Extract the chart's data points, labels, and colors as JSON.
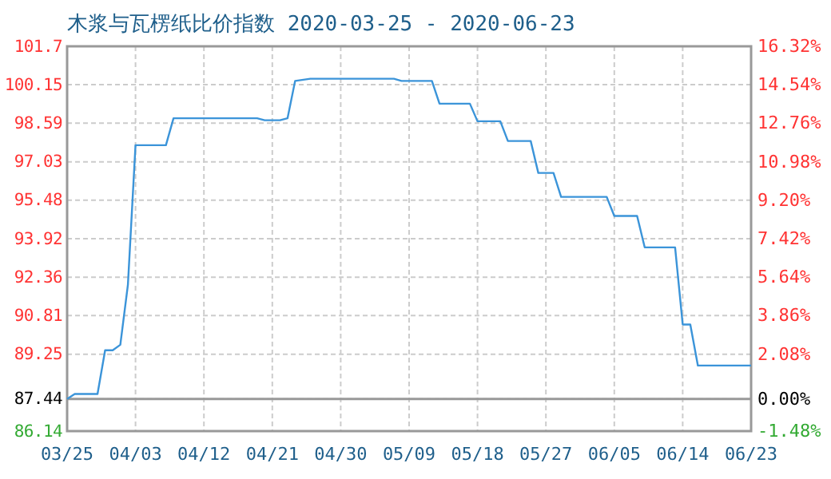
{
  "chart_data": {
    "type": "line",
    "title": "木浆与瓦楞纸比价指数 2020-03-25 - 2020-06-23",
    "x": [
      "2020-03-25",
      "2020-03-26",
      "2020-03-29",
      "2020-03-30",
      "2020-03-31",
      "2020-04-01",
      "2020-04-02",
      "2020-04-03",
      "2020-04-07",
      "2020-04-08",
      "2020-04-19",
      "2020-04-20",
      "2020-04-22",
      "2020-04-23",
      "2020-04-24",
      "2020-04-26",
      "2020-05-07",
      "2020-05-08",
      "2020-05-12",
      "2020-05-13",
      "2020-05-17",
      "2020-05-18",
      "2020-05-21",
      "2020-05-22",
      "2020-05-25",
      "2020-05-26",
      "2020-05-28",
      "2020-05-29",
      "2020-06-04",
      "2020-06-05",
      "2020-06-08",
      "2020-06-09",
      "2020-06-13",
      "2020-06-14",
      "2020-06-15",
      "2020-06-16",
      "2020-06-23"
    ],
    "series": [
      {
        "color": "#3b94d9",
        "values": [
          87.44,
          87.64,
          87.64,
          89.41,
          89.41,
          89.63,
          92.06,
          97.7,
          97.7,
          98.79,
          98.79,
          98.71,
          98.71,
          98.79,
          100.3,
          100.39,
          100.39,
          100.3,
          100.3,
          99.38,
          99.38,
          98.67,
          98.67,
          97.87,
          97.87,
          96.58,
          96.58,
          95.61,
          95.61,
          94.84,
          94.84,
          93.57,
          93.57,
          90.45,
          90.45,
          88.79,
          88.79
        ]
      }
    ],
    "xlim": [
      "2020-03-25",
      "2020-06-23"
    ],
    "xticks": [
      {
        "value": "2020-03-25",
        "label": "03/25"
      },
      {
        "value": "2020-04-03",
        "label": "04/03"
      },
      {
        "value": "2020-04-12",
        "label": "04/12"
      },
      {
        "value": "2020-04-21",
        "label": "04/21"
      },
      {
        "value": "2020-04-30",
        "label": "04/30"
      },
      {
        "value": "2020-05-09",
        "label": "05/09"
      },
      {
        "value": "2020-05-18",
        "label": "05/18"
      },
      {
        "value": "2020-05-27",
        "label": "05/27"
      },
      {
        "value": "2020-06-05",
        "label": "06/05"
      },
      {
        "value": "2020-06-14",
        "label": "06/14"
      },
      {
        "value": "2020-06-23",
        "label": "06/23"
      }
    ],
    "ylim": [
      86.14,
      101.7
    ],
    "yticks": [
      86.14,
      87.44,
      89.25,
      90.81,
      92.36,
      93.92,
      95.48,
      97.03,
      98.59,
      100.15,
      101.7
    ],
    "y2lim": [
      -1.48,
      16.32
    ],
    "y2ticks": [
      {
        "value": -1.48,
        "label": "-1.48%"
      },
      {
        "value": 0,
        "label": "0.00%"
      },
      {
        "value": 2.08,
        "label": "2.08%"
      },
      {
        "value": 3.86,
        "label": "3.86%"
      },
      {
        "value": 5.64,
        "label": "5.64%"
      },
      {
        "value": 7.42,
        "label": "7.42%"
      },
      {
        "value": 9.2,
        "label": "9.20%"
      },
      {
        "value": 10.98,
        "label": "10.98%"
      },
      {
        "value": 12.76,
        "label": "12.76%"
      },
      {
        "value": 14.54,
        "label": "14.54%"
      },
      {
        "value": 16.32,
        "label": "16.32%"
      }
    ],
    "ref_lines": [
      {
        "axis": "y",
        "value": 87.44,
        "color": "#999999"
      }
    ],
    "grid": true
  }
}
